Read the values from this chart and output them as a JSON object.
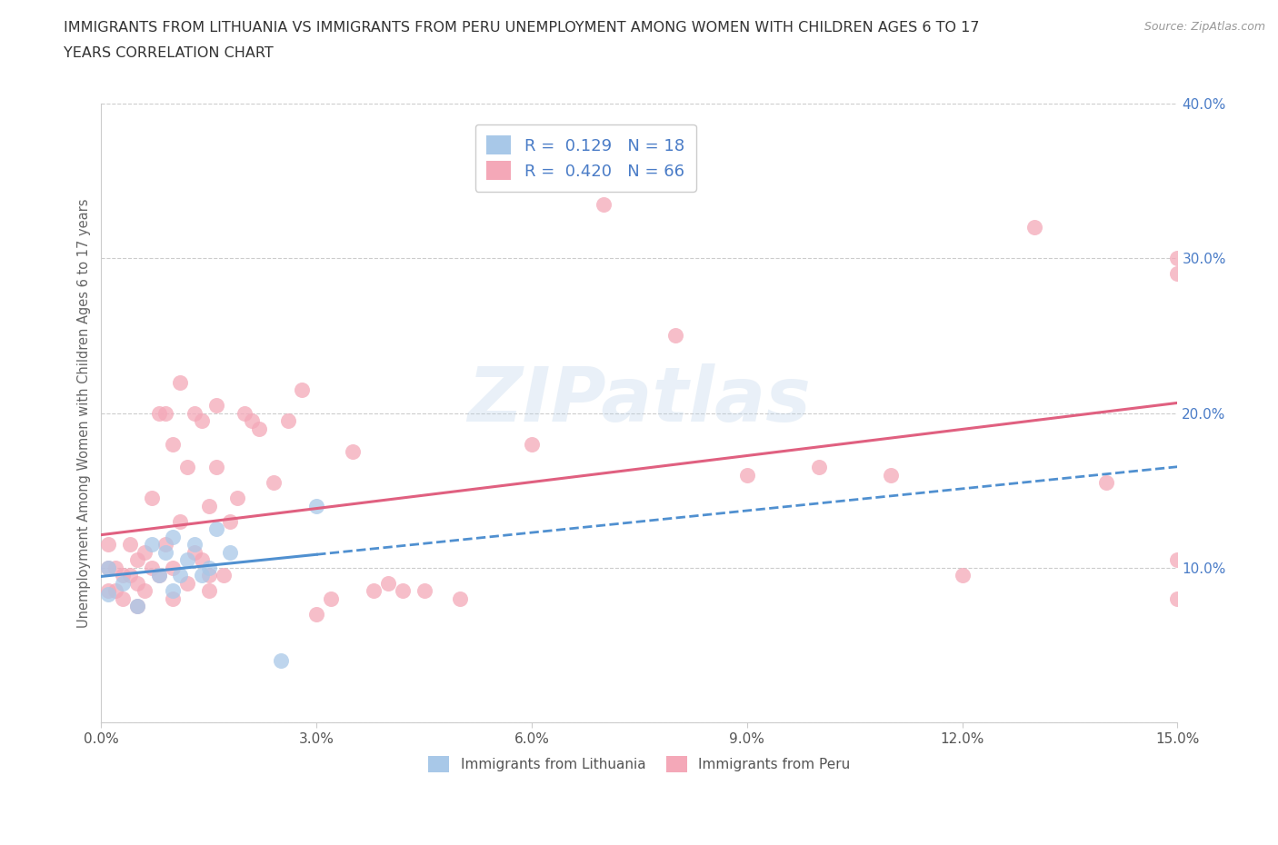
{
  "title_line1": "IMMIGRANTS FROM LITHUANIA VS IMMIGRANTS FROM PERU UNEMPLOYMENT AMONG WOMEN WITH CHILDREN AGES 6 TO 17",
  "title_line2": "YEARS CORRELATION CHART",
  "source": "Source: ZipAtlas.com",
  "ylabel": "Unemployment Among Women with Children Ages 6 to 17 years",
  "watermark": "ZIPatlas",
  "xlim": [
    0.0,
    0.15
  ],
  "ylim": [
    0.0,
    0.4
  ],
  "xticks": [
    0.0,
    0.03,
    0.06,
    0.09,
    0.12,
    0.15
  ],
  "yticks": [
    0.0,
    0.1,
    0.2,
    0.3,
    0.4
  ],
  "xtick_labels": [
    "0.0%",
    "3.0%",
    "6.0%",
    "9.0%",
    "12.0%",
    "15.0%"
  ],
  "ytick_labels": [
    "",
    "10.0%",
    "20.0%",
    "30.0%",
    "40.0%"
  ],
  "legend_entries": [
    {
      "label": "Immigrants from Lithuania",
      "R": "0.129",
      "N": "18",
      "color": "#a8c8e8",
      "line_color": "#5090d0"
    },
    {
      "label": "Immigrants from Peru",
      "R": "0.420",
      "N": "66",
      "color": "#f4a8b8",
      "line_color": "#e06080"
    }
  ],
  "lithuania_x": [
    0.001,
    0.001,
    0.003,
    0.005,
    0.007,
    0.008,
    0.009,
    0.01,
    0.01,
    0.011,
    0.012,
    0.013,
    0.014,
    0.015,
    0.016,
    0.018,
    0.025,
    0.03
  ],
  "lithuania_y": [
    0.1,
    0.083,
    0.09,
    0.075,
    0.115,
    0.095,
    0.11,
    0.085,
    0.12,
    0.095,
    0.105,
    0.115,
    0.095,
    0.1,
    0.125,
    0.11,
    0.04,
    0.14
  ],
  "peru_x": [
    0.001,
    0.001,
    0.001,
    0.002,
    0.002,
    0.003,
    0.003,
    0.004,
    0.004,
    0.005,
    0.005,
    0.005,
    0.006,
    0.006,
    0.007,
    0.007,
    0.008,
    0.008,
    0.009,
    0.009,
    0.01,
    0.01,
    0.01,
    0.011,
    0.011,
    0.012,
    0.012,
    0.013,
    0.013,
    0.014,
    0.014,
    0.015,
    0.015,
    0.015,
    0.016,
    0.016,
    0.017,
    0.018,
    0.019,
    0.02,
    0.021,
    0.022,
    0.024,
    0.026,
    0.028,
    0.03,
    0.032,
    0.035,
    0.038,
    0.04,
    0.042,
    0.045,
    0.05,
    0.06,
    0.07,
    0.08,
    0.09,
    0.1,
    0.11,
    0.12,
    0.13,
    0.14,
    0.15,
    0.15,
    0.15,
    0.15
  ],
  "peru_y": [
    0.085,
    0.1,
    0.115,
    0.085,
    0.1,
    0.08,
    0.095,
    0.095,
    0.115,
    0.075,
    0.09,
    0.105,
    0.085,
    0.11,
    0.1,
    0.145,
    0.095,
    0.2,
    0.115,
    0.2,
    0.08,
    0.1,
    0.18,
    0.13,
    0.22,
    0.09,
    0.165,
    0.11,
    0.2,
    0.105,
    0.195,
    0.085,
    0.095,
    0.14,
    0.165,
    0.205,
    0.095,
    0.13,
    0.145,
    0.2,
    0.195,
    0.19,
    0.155,
    0.195,
    0.215,
    0.07,
    0.08,
    0.175,
    0.085,
    0.09,
    0.085,
    0.085,
    0.08,
    0.18,
    0.335,
    0.25,
    0.16,
    0.165,
    0.16,
    0.095,
    0.32,
    0.155,
    0.08,
    0.105,
    0.29,
    0.3
  ],
  "background_color": "#ffffff",
  "grid_color": "#cccccc",
  "title_color": "#333333",
  "label_color": "#4a7cc7",
  "ylabel_color": "#666666"
}
